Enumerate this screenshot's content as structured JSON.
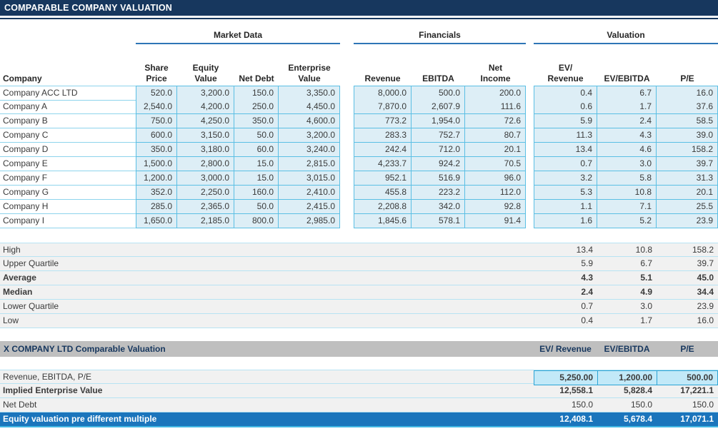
{
  "title": "COMPARABLE COMPANY VALUATION",
  "sections": {
    "market_data": "Market Data",
    "financials": "Financials",
    "valuation": "Valuation"
  },
  "column_headers": {
    "company": "Company",
    "share_price": "Share\nPrice",
    "equity_value": "Equity\nValue",
    "net_debt": "Net Debt",
    "enterprise_value": "Enterprise\nValue",
    "revenue": "Revenue",
    "ebitda": "EBITDA",
    "net_income": "Net\nIncome",
    "ev_revenue": "EV/\nRevenue",
    "ev_ebitda": "EV/EBITDA",
    "pe": "P/E"
  },
  "companies": [
    {
      "name": "Company ACC LTD",
      "values": [
        "520.0",
        "3,200.0",
        "150.0",
        "3,350.0",
        "8,000.0",
        "500.0",
        "200.0",
        "0.4",
        "6.7",
        "16.0"
      ]
    },
    {
      "name": "Company A",
      "values": [
        "2,540.0",
        "4,200.0",
        "250.0",
        "4,450.0",
        "7,870.0",
        "2,607.9",
        "111.6",
        "0.6",
        "1.7",
        "37.6"
      ]
    },
    {
      "name": "Company B",
      "values": [
        "750.0",
        "4,250.0",
        "350.0",
        "4,600.0",
        "773.2",
        "1,954.0",
        "72.6",
        "5.9",
        "2.4",
        "58.5"
      ]
    },
    {
      "name": "Company C",
      "values": [
        "600.0",
        "3,150.0",
        "50.0",
        "3,200.0",
        "283.3",
        "752.7",
        "80.7",
        "11.3",
        "4.3",
        "39.0"
      ]
    },
    {
      "name": "Company D",
      "values": [
        "350.0",
        "3,180.0",
        "60.0",
        "3,240.0",
        "242.4",
        "712.0",
        "20.1",
        "13.4",
        "4.6",
        "158.2"
      ]
    },
    {
      "name": "Company E",
      "values": [
        "1,500.0",
        "2,800.0",
        "15.0",
        "2,815.0",
        "4,233.7",
        "924.2",
        "70.5",
        "0.7",
        "3.0",
        "39.7"
      ]
    },
    {
      "name": "Company F",
      "values": [
        "1,200.0",
        "3,000.0",
        "15.0",
        "3,015.0",
        "952.1",
        "516.9",
        "96.0",
        "3.2",
        "5.8",
        "31.3"
      ]
    },
    {
      "name": "Company G",
      "values": [
        "352.0",
        "2,250.0",
        "160.0",
        "2,410.0",
        "455.8",
        "223.2",
        "112.0",
        "5.3",
        "10.8",
        "20.1"
      ]
    },
    {
      "name": "Company H",
      "values": [
        "285.0",
        "2,365.0",
        "50.0",
        "2,415.0",
        "2,208.8",
        "342.0",
        "92.8",
        "1.1",
        "7.1",
        "25.5"
      ]
    },
    {
      "name": "Company I",
      "values": [
        "1,650.0",
        "2,185.0",
        "800.0",
        "2,985.0",
        "1,845.6",
        "578.1",
        "91.4",
        "1.6",
        "5.2",
        "23.9"
      ]
    }
  ],
  "stats": [
    {
      "label": "High",
      "bold": false,
      "values": [
        "13.4",
        "10.8",
        "158.2"
      ]
    },
    {
      "label": "Upper Quartile",
      "bold": false,
      "values": [
        "5.9",
        "6.7",
        "39.7"
      ]
    },
    {
      "label": "Average",
      "bold": true,
      "values": [
        "4.3",
        "5.1",
        "45.0"
      ]
    },
    {
      "label": "Median",
      "bold": true,
      "values": [
        "2.4",
        "4.9",
        "34.4"
      ]
    },
    {
      "label": "Lower Quartile",
      "bold": false,
      "values": [
        "0.7",
        "3.0",
        "23.9"
      ]
    },
    {
      "label": "Low",
      "bold": false,
      "values": [
        "0.4",
        "1.7",
        "16.0"
      ]
    }
  ],
  "target_section": {
    "title": "X COMPANY LTD Comparable Valuation",
    "columns": [
      "EV/ Revenue",
      "EV/EBITDA",
      "P/E"
    ],
    "rows": [
      {
        "label": "Revenue, EBITDA, P/E",
        "style": "input",
        "values": [
          "5,250.00",
          "1,200.00",
          "500.00"
        ]
      },
      {
        "label": "Implied Enterprise Value",
        "style": "bold",
        "values": [
          "12,558.1",
          "5,828.4",
          "17,221.1"
        ]
      },
      {
        "label": "Net Debt",
        "style": "plain",
        "values": [
          "150.0",
          "150.0",
          "150.0"
        ]
      },
      {
        "label": "Equity valuation pre different multiple",
        "style": "total",
        "values": [
          "12,408.1",
          "5,678.4",
          "17,071.1"
        ]
      }
    ]
  },
  "colors": {
    "header_navy": "#17375e",
    "section_underline": "#2e75b6",
    "cell_fill": "#ddeef6",
    "cell_border": "#5bbfe4",
    "stats_fill": "#f1f1f1",
    "stats_separator": "#b7e3f3",
    "gray_bar": "#bfbfbf",
    "input_cell_fill": "#c2e9f8",
    "input_cell_border": "#2ba3d4",
    "total_bar_blue": "#1b75bc"
  }
}
